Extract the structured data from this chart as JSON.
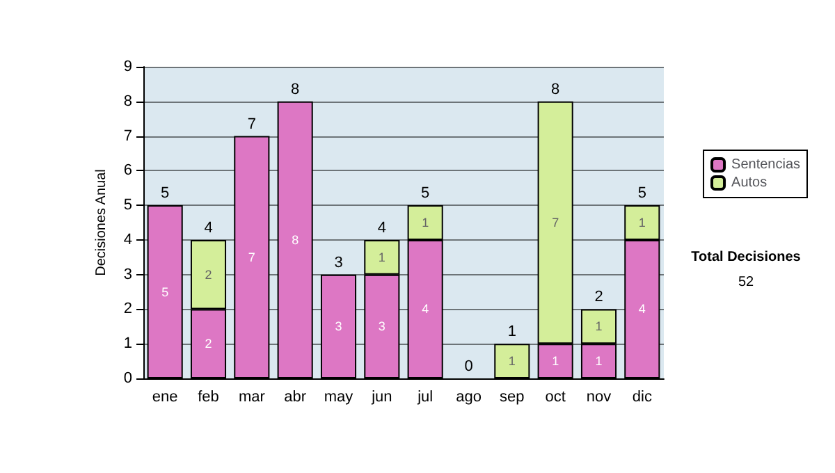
{
  "chart_data": {
    "type": "bar",
    "ylabel": "Decisiones Anual",
    "categories": [
      "ene",
      "feb",
      "mar",
      "abr",
      "may",
      "jun",
      "jul",
      "ago",
      "sep",
      "oct",
      "nov",
      "dic"
    ],
    "series": [
      {
        "name": "Sentencias",
        "color": "#dd77c4",
        "values": [
          5,
          2,
          7,
          8,
          3,
          3,
          4,
          0,
          0,
          1,
          1,
          4
        ],
        "value_labels": [
          "5",
          "2",
          "7",
          "8",
          "3",
          "3",
          "4",
          null,
          null,
          "1",
          "1",
          "4"
        ]
      },
      {
        "name": "Autos",
        "color": "#d4ee9a",
        "values": [
          0,
          2,
          0,
          0,
          0,
          1,
          1,
          0,
          1,
          7,
          1,
          1
        ],
        "value_labels": [
          null,
          "2",
          null,
          null,
          null,
          "1",
          "1",
          null,
          "1",
          "7",
          "1",
          "1"
        ]
      }
    ],
    "stacked": true,
    "totals": [
      "5",
      "4",
      "7",
      "8",
      "3",
      "4",
      "5",
      "0",
      "1",
      "8",
      "2",
      "5"
    ],
    "ylim": [
      0,
      9
    ],
    "yticks": [
      0,
      1,
      2,
      3,
      4,
      5,
      6,
      7,
      8,
      9
    ],
    "grid": "y",
    "legend": "right",
    "annotations": [
      "Total Decisiones",
      "52"
    ]
  }
}
